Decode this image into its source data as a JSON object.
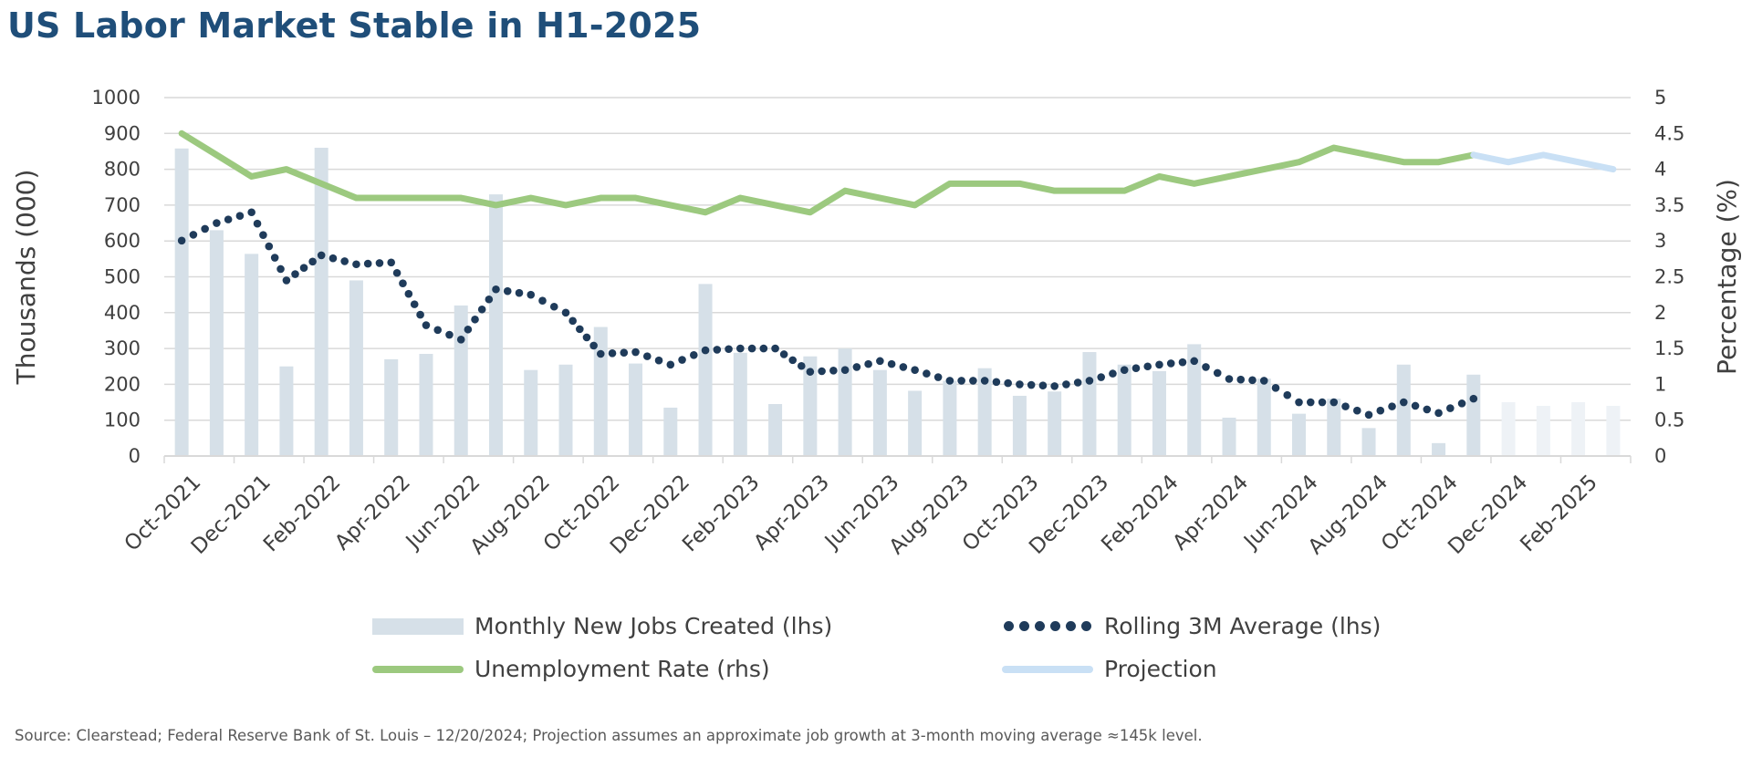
{
  "title": "US Labor Market Stable in H1-2025",
  "source": "Source:  Clearstead; Federal Reserve Bank of St. Louis – 12/20/2024; Projection assumes an approximate job growth at 3-month moving average ≈145k level.",
  "colors": {
    "title": "#1f4e79",
    "bars": "#d6e0e8",
    "bars_projection": "#eef2f6",
    "rolling_avg": "#1f3b5a",
    "unemployment": "#9cc97f",
    "projection": "#c9e0f5",
    "grid": "#d9d9d9",
    "axis_text": "#404040"
  },
  "legend": {
    "jobs": "Monthly New Jobs Created (lhs)",
    "rolling": "Rolling 3M Average (lhs)",
    "unemployment": "Unemployment Rate (rhs)",
    "projection": "Projection"
  },
  "chart_data": {
    "type": "bar",
    "title": "US Labor Market Stable in H1-2025",
    "ylabel": "Thousands (000)",
    "y2label": "Percentage (%)",
    "ylim": [
      0,
      1000
    ],
    "y2lim": [
      0,
      5
    ],
    "yticks": [
      "0",
      "100",
      "200",
      "300",
      "400",
      "500",
      "600",
      "700",
      "800",
      "900",
      "1000"
    ],
    "y2ticks": [
      "0",
      "0.5",
      "1",
      "1.5",
      "2",
      "2.5",
      "3",
      "3.5",
      "4",
      "4.5",
      "5"
    ],
    "grid": true,
    "legend_position": "bottom",
    "x_labels": [
      "Oct-2021",
      "Dec-2021",
      "Feb-2022",
      "Apr-2022",
      "Jun-2022",
      "Aug-2022",
      "Oct-2022",
      "Dec-2022",
      "Feb-2023",
      "Apr-2023",
      "Jun-2023",
      "Aug-2023",
      "Oct-2023",
      "Dec-2023",
      "Feb-2024",
      "Apr-2024",
      "Jun-2024",
      "Aug-2024",
      "Oct-2024",
      "Dec-2024",
      "Feb-2025"
    ],
    "x_label_indices": [
      0,
      2,
      4,
      6,
      8,
      10,
      12,
      14,
      16,
      18,
      20,
      22,
      24,
      26,
      28,
      30,
      32,
      34,
      36,
      38,
      40
    ],
    "months": [
      "Oct-2021",
      "Nov-2021",
      "Dec-2021",
      "Jan-2022",
      "Feb-2022",
      "Mar-2022",
      "Apr-2022",
      "May-2022",
      "Jun-2022",
      "Jul-2022",
      "Aug-2022",
      "Sep-2022",
      "Oct-2022",
      "Nov-2022",
      "Dec-2022",
      "Jan-2023",
      "Feb-2023",
      "Mar-2023",
      "Apr-2023",
      "May-2023",
      "Jun-2023",
      "Jul-2023",
      "Aug-2023",
      "Sep-2023",
      "Oct-2023",
      "Nov-2023",
      "Dec-2023",
      "Jan-2024",
      "Feb-2024",
      "Mar-2024",
      "Apr-2024",
      "May-2024",
      "Jun-2024",
      "Jul-2024",
      "Aug-2024",
      "Sep-2024",
      "Oct-2024",
      "Nov-2024",
      "Dec-2024",
      "Jan-2025",
      "Feb-2025",
      "Mar-2025"
    ],
    "series": [
      {
        "name": "Monthly New Jobs Created (lhs)",
        "axis": "left",
        "kind": "bar",
        "values": [
          858,
          630,
          564,
          250,
          860,
          490,
          270,
          285,
          420,
          730,
          240,
          255,
          360,
          258,
          135,
          480,
          288,
          145,
          278,
          300,
          240,
          182,
          210,
          245,
          168,
          180,
          290,
          255,
          237,
          312,
          107,
          216,
          118,
          160,
          78,
          255,
          36,
          227,
          150,
          140,
          150,
          140
        ],
        "projection_from_index": 38
      },
      {
        "name": "Rolling 3M Average (lhs)",
        "axis": "left",
        "kind": "dotted-line",
        "values": [
          601,
          650,
          680,
          490,
          560,
          535,
          540,
          365,
          325,
          465,
          450,
          400,
          285,
          290,
          255,
          295,
          300,
          300,
          235,
          240,
          265,
          240,
          210,
          210,
          200,
          195,
          210,
          240,
          255,
          265,
          215,
          210,
          150,
          150,
          115,
          150,
          120,
          160
        ]
      },
      {
        "name": "Unemployment Rate (rhs)",
        "axis": "right",
        "kind": "line",
        "values": [
          4.5,
          4.2,
          3.9,
          4.0,
          3.8,
          3.6,
          3.6,
          3.6,
          3.6,
          3.5,
          3.6,
          3.5,
          3.6,
          3.6,
          3.5,
          3.4,
          3.6,
          3.5,
          3.4,
          3.7,
          3.6,
          3.5,
          3.8,
          3.8,
          3.8,
          3.7,
          3.7,
          3.7,
          3.9,
          3.8,
          3.9,
          4.0,
          4.1,
          4.3,
          4.2,
          4.1,
          4.1,
          4.2
        ]
      },
      {
        "name": "Projection",
        "axis": "right",
        "kind": "line",
        "start_index": 37,
        "values": [
          4.2,
          4.1,
          4.2,
          4.1,
          4.0
        ]
      }
    ]
  }
}
